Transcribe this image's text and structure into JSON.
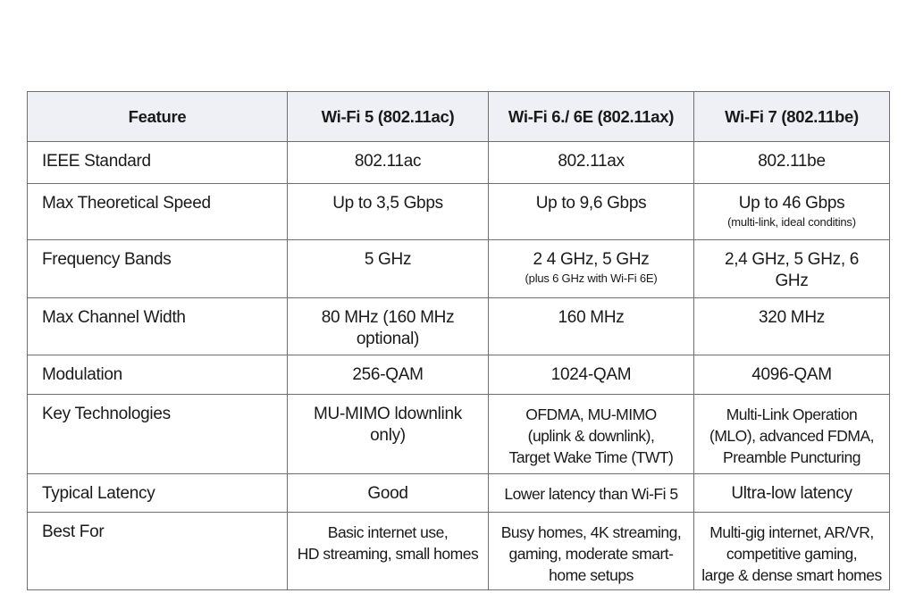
{
  "table": {
    "headers": [
      "Feature",
      "Wi-Fi 5 (802.11ac)",
      "Wi-Fi 6./ 6E (802.11ax)",
      "Wi-Fi 7 (802.11be)"
    ],
    "rows": [
      {
        "feature": "IEEE Standard",
        "wifi5": "802.11ac",
        "wifi6": "802.11ax",
        "wifi7": "802.11be"
      },
      {
        "feature": "Max Theoretical Speed",
        "wifi5": "Up to 3,5 Gbps",
        "wifi6": "Up to 9,6 Gbps",
        "wifi7": "Up to 46 Gbps",
        "wifi7_note": "(multi-link, ideal conditins)"
      },
      {
        "feature": "Frequency Bands",
        "wifi5": "5 GHz",
        "wifi6": "2 4 GHz, 5 GHz",
        "wifi6_note": "(plus 6 GHz with Wi-Fi 6E)",
        "wifi7": "2,4 GHz, 5 GHz, 6\nGHz"
      },
      {
        "feature": "Max Channel Width",
        "wifi5": "80 MHz (160 MHz\noptional)",
        "wifi6": "160 MHz",
        "wifi7": "320 MHz"
      },
      {
        "feature": "Modulation",
        "wifi5": "256-QAM",
        "wifi6": "1024-QAM",
        "wifi7": "4096-QAM"
      },
      {
        "feature": "Key Technologies",
        "wifi5": "MU-MIMO ldownlink\nonly)",
        "wifi6": "OFDMA, MU-MIMO\n(uplink & downlink),\nTarget Wake Time (TWT)",
        "wifi7": "Multi-Link Operation\n(MLO), advanced FDMA,\nPreamble Puncturing"
      },
      {
        "feature": "Typical Latency",
        "wifi5": "Good",
        "wifi6": "Lower latency than Wi-Fi 5",
        "wifi7": "Ultra-low latency"
      },
      {
        "feature": "Best For",
        "wifi5": "Basic internet use,\nHD streaming, small homes",
        "wifi6": "Busy homes, 4K streaming,\ngaming, moderate smart-\nhome setups",
        "wifi7": "Multi-gig internet, AR/VR,\ncompetitive gaming,\nlarge & dense smart homes"
      }
    ]
  }
}
